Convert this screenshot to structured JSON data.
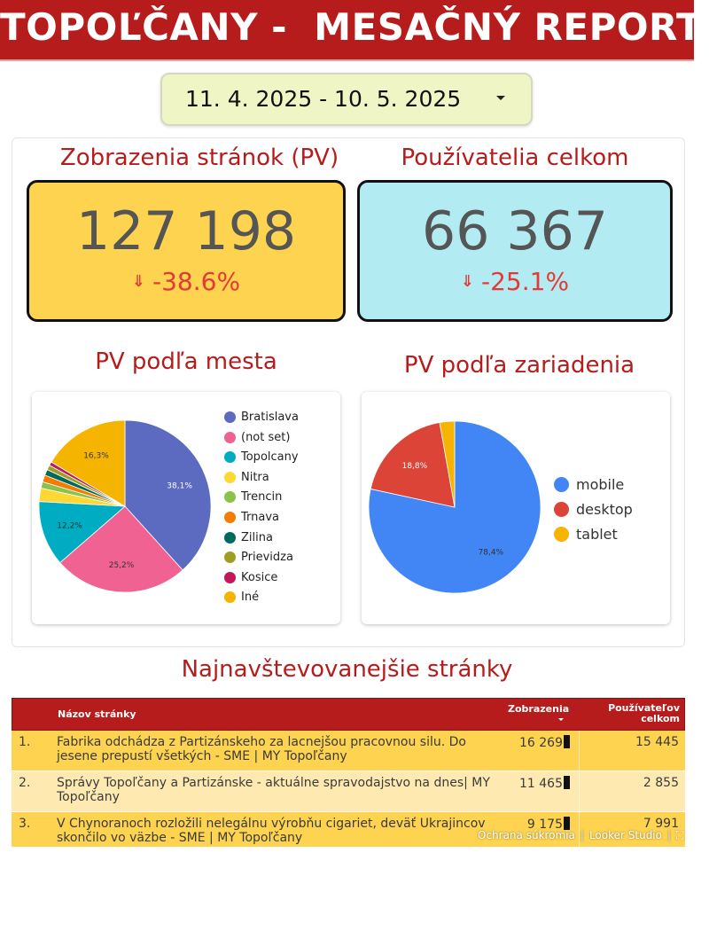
{
  "header": {
    "title": "TOPOĽČANY -  MESAČNÝ REPORT"
  },
  "date_range": {
    "value": "11. 4. 2025 - 10. 5. 2025"
  },
  "kpis": [
    {
      "title": "Zobrazenia stránok (PV)",
      "value": "127 198",
      "delta": "-38.6%",
      "color": "#fdd34f"
    },
    {
      "title": "Používatelia celkom",
      "value": "66 367",
      "delta": "-25.1%",
      "color": "#b2ebf2"
    }
  ],
  "chart_data": [
    {
      "type": "pie",
      "title": "PV podľa mesta",
      "labels": [
        "Bratislava",
        "(not set)",
        "Topolcany",
        "Nitra",
        "Trencin",
        "Trnava",
        "Zilina",
        "Prievidza",
        "Kosice",
        "Iné"
      ],
      "values": [
        38.1,
        25.2,
        12.2,
        2.5,
        1.2,
        1.3,
        1.1,
        0.9,
        0.7,
        16.3
      ],
      "shown_labels": [
        "38,1%",
        "25,2%",
        "12,2%",
        "",
        "",
        "",
        "",
        "",
        "",
        "16,3%"
      ],
      "colors": [
        "#5c6bc0",
        "#f06292",
        "#00acc1",
        "#fdd835",
        "#8bc34a",
        "#f57c00",
        "#00695c",
        "#9e9d24",
        "#c2185b",
        "#f4b400"
      ],
      "legend": "right"
    },
    {
      "type": "pie",
      "title": "PV podľa zariadenia",
      "labels": [
        "mobile",
        "desktop",
        "tablet"
      ],
      "values": [
        78.4,
        18.8,
        2.8
      ],
      "shown_labels": [
        "78,4%",
        "18,8%",
        ""
      ],
      "colors": [
        "#4285f4",
        "#db4437",
        "#f4b400"
      ],
      "legend": "right"
    }
  ],
  "table": {
    "title": "Najnavštevovanejšie stránky",
    "columns": [
      "Názov stránky",
      "Zobrazenia",
      "Používateľov celkom"
    ],
    "rows": [
      {
        "rank": "1.",
        "name_line1": "Fabrika odchádza z Partizánskeho za lacnejšou pracovnou silu. Do",
        "name_line2": "jesene prepustí všetkých - SME | MY Topoľčany",
        "views": "16 269",
        "users": "15 445",
        "bg": "#fdd34f"
      },
      {
        "rank": "2.",
        "name_line1": "Správy Topoľčany a Partizánske - aktuálne spravodajstvo na dnes| MY",
        "name_line2": "Topoľčany",
        "views": "11 465",
        "users": "2 855",
        "bg": "#feeab1"
      },
      {
        "rank": "3.",
        "name_line1": "V Chynoranoch rozložili nelegálnu výrobňu cigariet, deväť Ukrajincov",
        "name_line2": "skončilo vo väzbe - SME | MY Topoľčany",
        "views": "9 175",
        "users": "7 991",
        "bg": "#fdd34f"
      }
    ]
  },
  "footer": {
    "privacy": "Ochrana súkromia",
    "brand": "Looker Studio"
  }
}
